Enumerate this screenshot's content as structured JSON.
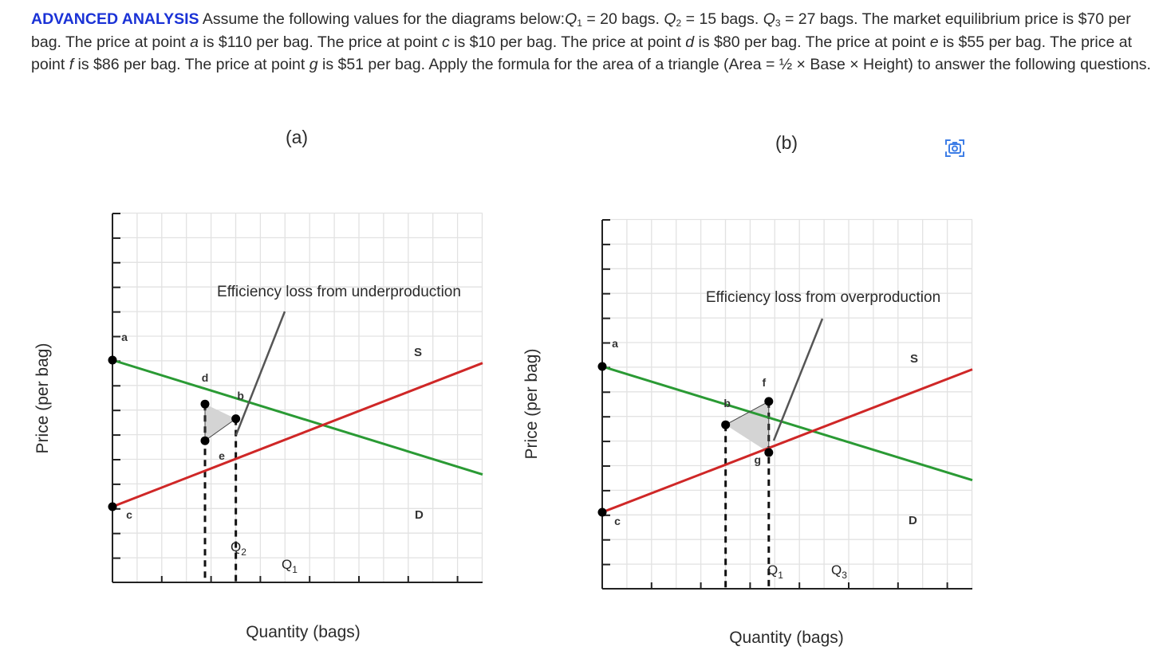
{
  "question": {
    "tag": "ADVANCED ANALYSIS",
    "s1": "Assume the following values for the diagrams below:",
    "q1_sym": "Q",
    "q1_sub": "1",
    "q1_val": " = 20 bags. ",
    "q2_sym": "Q",
    "q2_sub": "2",
    "q2_val": " = 15 bags. ",
    "q3_sym": "Q",
    "q3_sub": "3",
    "q3_val": " = 27 bags. ",
    "s2": "The market equilibrium price is $70 per bag. The price at point ",
    "pa": "a",
    "s3": " is $110 per bag. The price at point ",
    "pc": "c",
    "s4": " is $10 per bag. The price at point ",
    "pd": "d",
    "s5": " is $80 per bag. The price at point ",
    "pe": "e",
    "s6": " is $55 per bag. The price at point ",
    "pf": "f",
    "s7": " is $86 per bag. The price at point ",
    "pg": "g",
    "s8": " is $51 per bag. Apply the formula for the area of a triangle (Area = ½ × Base × Height) to answer the following questions."
  },
  "colors": {
    "demand": "#2a9a34",
    "supply": "#cf2727",
    "triangle": "#d4d4d4",
    "tag": "#1a32d6",
    "camera_icon": "#3e7ee6"
  },
  "icons": [
    "camera-scan-icon"
  ],
  "chart_data": [
    {
      "type": "line",
      "panel_label": "(a)",
      "annotation": "Efficiency loss from underproduction",
      "xlabel": "Quantity (bags)",
      "ylabel": "Price (per bag)",
      "grid": true,
      "series": [
        {
          "name": "D",
          "color": "#2a9a34",
          "x": [
            0,
            60
          ],
          "y": [
            110,
            32
          ]
        },
        {
          "name": "S",
          "color": "#cf2727",
          "x": [
            0,
            60
          ],
          "y": [
            10,
            108
          ]
        }
      ],
      "points": [
        {
          "label": "a",
          "x": 0,
          "y": 110
        },
        {
          "label": "c",
          "x": 0,
          "y": 10
        },
        {
          "label": "d",
          "x": 15,
          "y": 80
        },
        {
          "label": "e",
          "x": 15,
          "y": 55
        },
        {
          "label": "b",
          "x": 20,
          "y": 70
        }
      ],
      "quantity_markers": [
        {
          "label": "Q",
          "sub": "2",
          "x": 15
        },
        {
          "label": "Q",
          "sub": "1",
          "x": 20
        }
      ],
      "shaded_triangle": [
        "d",
        "e",
        "b"
      ]
    },
    {
      "type": "line",
      "panel_label": "(b)",
      "annotation": "Efficiency loss from overproduction",
      "xlabel": "Quantity (bags)",
      "ylabel": "Price (per bag)",
      "grid": true,
      "series": [
        {
          "name": "D",
          "color": "#2a9a34",
          "x": [
            0,
            60
          ],
          "y": [
            110,
            32
          ]
        },
        {
          "name": "S",
          "color": "#cf2727",
          "x": [
            0,
            60
          ],
          "y": [
            10,
            108
          ]
        }
      ],
      "points": [
        {
          "label": "a",
          "x": 0,
          "y": 110
        },
        {
          "label": "c",
          "x": 0,
          "y": 10
        },
        {
          "label": "b",
          "x": 20,
          "y": 70
        },
        {
          "label": "f",
          "x": 27,
          "y": 86
        },
        {
          "label": "g",
          "x": 27,
          "y": 51
        }
      ],
      "quantity_markers": [
        {
          "label": "Q",
          "sub": "1",
          "x": 20
        },
        {
          "label": "Q",
          "sub": "3",
          "x": 27
        }
      ],
      "shaded_triangle": [
        "b",
        "f",
        "g"
      ]
    }
  ]
}
